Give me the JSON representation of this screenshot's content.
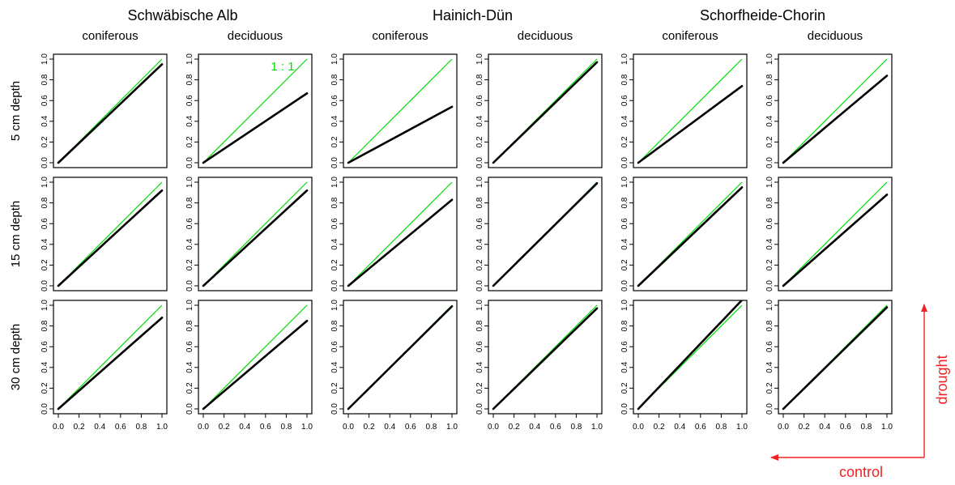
{
  "chart_data": {
    "type": "line",
    "sites": [
      "Schwäbische Alb",
      "Hainich-Dün",
      "Schorfheide-Chorin"
    ],
    "forest_types": [
      "coniferous",
      "deciduous"
    ],
    "depths": [
      "5 cm depth",
      "15 cm depth",
      "30 cm depth"
    ],
    "xlim": [
      0,
      1
    ],
    "ylim": [
      0,
      1
    ],
    "x_ticks": [
      "0.0",
      "0.2",
      "0.4",
      "0.6",
      "0.8",
      "1.0"
    ],
    "y_ticks": [
      "0.0",
      "0.2",
      "0.4",
      "0.6",
      "0.8",
      "1.0"
    ],
    "reference_label": "1 : 1",
    "reference_color": "#00dd00",
    "fit_color": "#000000",
    "arrow_color": "#ee2222",
    "arrow_x_label": "control",
    "arrow_y_label": "drought",
    "panels": [
      [
        {
          "site": "Schwäbische Alb",
          "forest": "coniferous",
          "x": [
            0,
            1
          ],
          "y": [
            0.0,
            0.95
          ]
        },
        {
          "site": "Schwäbische Alb",
          "forest": "deciduous",
          "x": [
            0,
            1
          ],
          "y": [
            0.0,
            0.67
          ]
        },
        {
          "site": "Hainich-Dün",
          "forest": "coniferous",
          "x": [
            0,
            1
          ],
          "y": [
            0.0,
            0.54
          ]
        },
        {
          "site": "Hainich-Dün",
          "forest": "deciduous",
          "x": [
            0,
            1
          ],
          "y": [
            0.0,
            0.97
          ]
        },
        {
          "site": "Schorfheide-Chorin",
          "forest": "coniferous",
          "x": [
            0,
            1
          ],
          "y": [
            0.0,
            0.74
          ]
        },
        {
          "site": "Schorfheide-Chorin",
          "forest": "deciduous",
          "x": [
            0,
            1
          ],
          "y": [
            0.0,
            0.84
          ]
        }
      ],
      [
        {
          "site": "Schwäbische Alb",
          "forest": "coniferous",
          "x": [
            0,
            1
          ],
          "y": [
            0.0,
            0.92
          ]
        },
        {
          "site": "Schwäbische Alb",
          "forest": "deciduous",
          "x": [
            0,
            1
          ],
          "y": [
            0.0,
            0.92
          ]
        },
        {
          "site": "Hainich-Dün",
          "forest": "coniferous",
          "x": [
            0,
            1
          ],
          "y": [
            0.0,
            0.83
          ]
        },
        {
          "site": "Hainich-Dün",
          "forest": "deciduous",
          "x": [
            0,
            1
          ],
          "y": [
            0.0,
            0.99
          ]
        },
        {
          "site": "Schorfheide-Chorin",
          "forest": "coniferous",
          "x": [
            0,
            1
          ],
          "y": [
            0.0,
            0.95
          ]
        },
        {
          "site": "Schorfheide-Chorin",
          "forest": "deciduous",
          "x": [
            0,
            1
          ],
          "y": [
            0.0,
            0.88
          ]
        }
      ],
      [
        {
          "site": "Schwäbische Alb",
          "forest": "coniferous",
          "x": [
            0,
            1
          ],
          "y": [
            0.0,
            0.88
          ]
        },
        {
          "site": "Schwäbische Alb",
          "forest": "deciduous",
          "x": [
            0,
            1
          ],
          "y": [
            0.0,
            0.85
          ]
        },
        {
          "site": "Hainich-Dün",
          "forest": "coniferous",
          "x": [
            0,
            1
          ],
          "y": [
            0.0,
            0.99
          ]
        },
        {
          "site": "Hainich-Dün",
          "forest": "deciduous",
          "x": [
            0,
            1
          ],
          "y": [
            0.0,
            0.97
          ]
        },
        {
          "site": "Schorfheide-Chorin",
          "forest": "coniferous",
          "x": [
            0,
            1
          ],
          "y": [
            0.0,
            1.05
          ]
        },
        {
          "site": "Schorfheide-Chorin",
          "forest": "deciduous",
          "x": [
            0,
            1
          ],
          "y": [
            0.0,
            0.98
          ]
        }
      ]
    ]
  }
}
